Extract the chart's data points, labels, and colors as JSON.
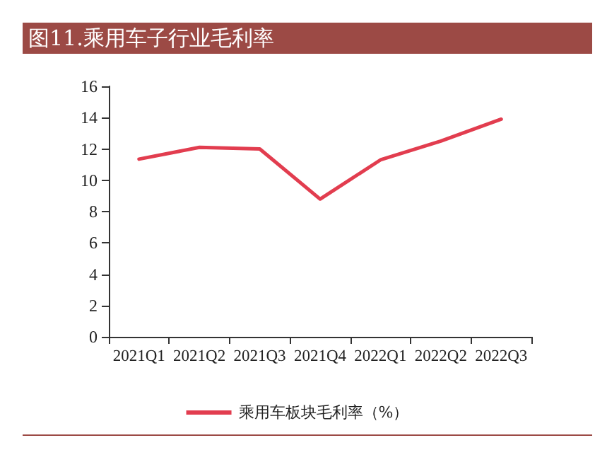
{
  "chart_data": {
    "type": "line",
    "title": "图11.乘用车子行业毛利率",
    "categories": [
      "2021Q1",
      "2021Q2",
      "2021Q3",
      "2021Q4",
      "2022Q1",
      "2022Q2",
      "2022Q3"
    ],
    "series": [
      {
        "name": "乘用车板块毛利率（%）",
        "color": "#e23d4f",
        "values": [
          11.35,
          12.1,
          12.0,
          8.8,
          11.3,
          12.5,
          13.9
        ]
      }
    ],
    "ylim": [
      0,
      16
    ],
    "yticks": [
      0,
      2,
      4,
      6,
      8,
      10,
      12,
      14,
      16
    ],
    "grid": false,
    "legend": "bottom",
    "marker": "none",
    "line_style": "solid"
  }
}
